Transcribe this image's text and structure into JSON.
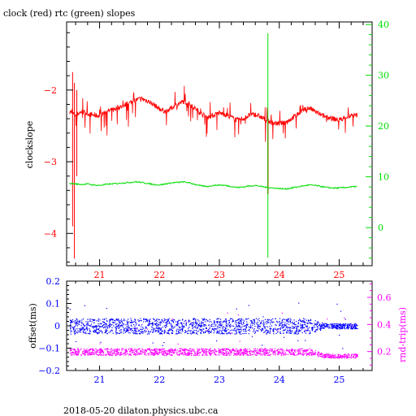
{
  "figure": {
    "title": "clock (red) rtc (green) slopes",
    "footer": "2018-05-20 dilaton.physics.ubc.ca"
  },
  "colors": {
    "clock": "#ff0000",
    "rtc": "#00dd00",
    "offset": "#0000ff",
    "roundtrip": "#ff00ff",
    "frame": "#000000"
  },
  "chart_data": [
    {
      "type": "line",
      "title": "clock (red) rtc (green) slopes",
      "xlabel": "",
      "ylabel": "clockslope",
      "y2label": "",
      "xlim": [
        20.45,
        25.55
      ],
      "ylim": [
        -4.45,
        -1.05
      ],
      "y2lim": [
        -7.5,
        40.5
      ],
      "xticks": [
        21,
        22,
        23,
        24,
        25
      ],
      "yticks": [
        -4,
        -3,
        -2
      ],
      "y2ticks": [
        0,
        10,
        20,
        30,
        40
      ],
      "grid": false,
      "series": [
        {
          "name": "clock",
          "axis": "left",
          "color": "#ff0000",
          "x": [
            20.5,
            20.6,
            20.7,
            20.8,
            20.9,
            21.0,
            21.1,
            21.2,
            21.3,
            21.4,
            21.5,
            21.6,
            21.7,
            21.8,
            21.9,
            22.0,
            22.1,
            22.2,
            22.3,
            22.4,
            22.5,
            22.6,
            22.7,
            22.8,
            22.9,
            23.0,
            23.1,
            23.2,
            23.3,
            23.4,
            23.5,
            23.6,
            23.7,
            23.8,
            23.9,
            24.0,
            24.1,
            24.2,
            24.3,
            24.4,
            24.5,
            24.6,
            24.7,
            24.8,
            24.9,
            25.0,
            25.1,
            25.2,
            25.3
          ],
          "y": [
            -2.3,
            -2.35,
            -2.3,
            -2.33,
            -2.35,
            -2.36,
            -2.3,
            -2.28,
            -2.25,
            -2.22,
            -2.18,
            -2.14,
            -2.12,
            -2.15,
            -2.2,
            -2.26,
            -2.3,
            -2.25,
            -2.2,
            -2.16,
            -2.19,
            -2.26,
            -2.33,
            -2.38,
            -2.35,
            -2.32,
            -2.34,
            -2.38,
            -2.42,
            -2.4,
            -2.35,
            -2.34,
            -2.38,
            -2.43,
            -2.46,
            -2.47,
            -2.45,
            -2.4,
            -2.34,
            -2.28,
            -2.25,
            -2.3,
            -2.35,
            -2.38,
            -2.4,
            -2.42,
            -2.38,
            -2.36,
            -2.35
          ]
        },
        {
          "name": "rtc",
          "axis": "right",
          "color": "#00dd00",
          "x": [
            20.5,
            20.6,
            20.7,
            20.8,
            20.9,
            21.0,
            21.1,
            21.2,
            21.3,
            21.4,
            21.5,
            21.6,
            21.7,
            21.8,
            21.9,
            22.0,
            22.1,
            22.2,
            22.3,
            22.4,
            22.5,
            22.6,
            22.7,
            22.8,
            22.9,
            23.0,
            23.1,
            23.2,
            23.3,
            23.4,
            23.5,
            23.6,
            23.7,
            23.8,
            23.9,
            24.0,
            24.1,
            24.2,
            24.3,
            24.4,
            24.5,
            24.6,
            24.7,
            24.8,
            24.9,
            25.0,
            25.1,
            25.2,
            25.3
          ],
          "y": [
            8.7,
            8.6,
            8.5,
            8.6,
            8.4,
            8.3,
            8.5,
            8.6,
            8.7,
            8.8,
            8.9,
            9.0,
            8.9,
            8.7,
            8.5,
            8.4,
            8.6,
            8.8,
            8.9,
            9.0,
            8.8,
            8.5,
            8.2,
            8.1,
            8.3,
            8.4,
            8.3,
            8.1,
            7.9,
            8.0,
            8.2,
            8.3,
            8.1,
            7.9,
            7.8,
            7.7,
            7.6,
            7.8,
            8.0,
            8.2,
            8.4,
            8.3,
            8.1,
            7.9,
            7.8,
            7.8,
            7.9,
            8.0,
            8.1
          ]
        }
      ]
    },
    {
      "type": "scatter",
      "xlabel": "",
      "ylabel": "offset(ms)",
      "y2label": "rnd-trip(ms)",
      "xlim": [
        20.45,
        25.55
      ],
      "ylim": [
        -0.2,
        0.2
      ],
      "y2lim": [
        0.06,
        0.72
      ],
      "xticks": [
        21,
        22,
        23,
        24,
        25
      ],
      "yticks": [
        -0.2,
        -0.1,
        0,
        0.1,
        0.2
      ],
      "ytick_labels": [
        "-0.2",
        "-0.1",
        "0",
        "0.1",
        "0.2"
      ],
      "y2ticks": [
        0.2,
        0.4,
        0.6
      ],
      "y2tick_labels": [
        "0.2",
        "0.4",
        "0.6"
      ],
      "grid": false,
      "series": [
        {
          "name": "offset",
          "axis": "left",
          "color": "#0000ff",
          "x": [
            20.5,
            21.0,
            21.5,
            22.0,
            22.5,
            23.0,
            23.5,
            24.0,
            24.5,
            24.75,
            25.0,
            25.3
          ],
          "y": [
            0.0,
            0.0,
            0.0,
            0.0,
            0.0,
            0.0,
            0.0,
            0.0,
            0.0,
            0.0,
            0.0,
            0.0
          ],
          "spread": [
            0.035,
            0.035,
            0.035,
            0.035,
            0.035,
            0.035,
            0.035,
            0.035,
            0.035,
            0.012,
            0.012,
            0.012
          ]
        },
        {
          "name": "round trip",
          "axis": "right",
          "color": "#ff00ff",
          "x": [
            20.5,
            21.0,
            21.5,
            22.0,
            22.5,
            23.0,
            23.5,
            24.0,
            24.5,
            24.75,
            25.0,
            25.3
          ],
          "y": [
            0.2,
            0.2,
            0.2,
            0.2,
            0.2,
            0.2,
            0.2,
            0.2,
            0.2,
            0.17,
            0.17,
            0.17
          ],
          "spread": [
            0.025,
            0.025,
            0.025,
            0.025,
            0.025,
            0.025,
            0.025,
            0.025,
            0.025,
            0.015,
            0.015,
            0.015
          ]
        }
      ]
    }
  ]
}
